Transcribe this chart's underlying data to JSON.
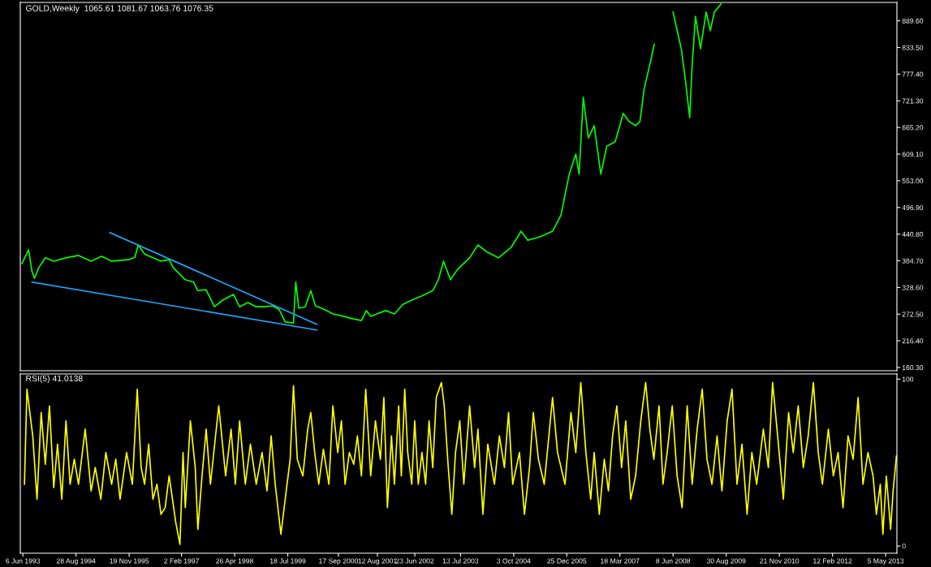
{
  "chart_data": [
    {
      "type": "line",
      "title": "GOLD,Weekly  1065.61 1081.67 1063.76 1076.35",
      "xlim": [
        "1993-05-15",
        "2013-08-08"
      ],
      "ylim": [
        153.5,
        928.3
      ],
      "tick_labels": "y",
      "yticks": [
        {
          "value": 160.3,
          "label": "160.30"
        },
        {
          "value": 216.4,
          "label": "216.40"
        },
        {
          "value": 272.5,
          "label": "272.50"
        },
        {
          "value": 328.6,
          "label": "328.60"
        },
        {
          "value": 384.7,
          "label": "384.70"
        },
        {
          "value": 440.8,
          "label": "440.80"
        },
        {
          "value": 496.9,
          "label": "496.90"
        },
        {
          "value": 553,
          "label": "553.00"
        },
        {
          "value": 609.1,
          "label": "609.10"
        },
        {
          "value": 665.2,
          "label": "665.20"
        },
        {
          "value": 721.3,
          "label": "721.30"
        },
        {
          "value": 777.4,
          "label": "777.40"
        },
        {
          "value": 833.5,
          "label": "833.50"
        },
        {
          "value": 889.6,
          "label": "889.60"
        }
      ],
      "series": [
        {
          "color": "#00ff00",
          "x": [
            "1993-05-29",
            "1993-07-24",
            "1993-08-22",
            "1993-09-12",
            "1993-10-17",
            "1993-12-12",
            "1994-02-21",
            "1994-06-04",
            "1994-09-18",
            "1995-01-02",
            "1995-04-01",
            "1995-06-24",
            "1995-11-12",
            "1996-01-06",
            "1996-02-03",
            "1996-03-28",
            "1996-06-06",
            "1996-08-13",
            "1996-10-21",
            "1996-11-25",
            "1997-02-02",
            "1997-03-06",
            "1997-05-15",
            "1997-06-19",
            "1997-08-28",
            "1997-11-07",
            "1998-01-16",
            "1998-04-16",
            "1998-06-07",
            "1998-08-16",
            "1998-10-25",
            "1999-01-04",
            "1999-03-13",
            "1999-05-07",
            "1999-06-26",
            "1999-09-04",
            "1999-09-23",
            "1999-10-19",
            "1999-12-12",
            "2000-01-28",
            "2000-03-07",
            "2000-05-26",
            "2000-08-01",
            "2000-10-27",
            "2001-01-13",
            "2001-03-30",
            "2001-05-10",
            "2001-06-16",
            "2001-08-07",
            "2001-10-20",
            "2002-01-02",
            "2002-03-15",
            "2002-05-28",
            "2002-08-22",
            "2002-11-21",
            "2003-01-08",
            "2003-02-20",
            "2003-04-19",
            "2003-06-19",
            "2003-09-28",
            "2003-12-07",
            "2004-02-16",
            "2004-05-28",
            "2004-09-12",
            "2004-12-05",
            "2005-01-30",
            "2005-05-13",
            "2005-08-27",
            "2005-11-06",
            "2006-01-15",
            "2006-03-11",
            "2006-04-08",
            "2006-05-13",
            "2006-06-25",
            "2006-08-13",
            "2006-10-08",
            "2006-11-27",
            "2007-02-06",
            "2007-04-15",
            "2007-06-03",
            "2007-07-29",
            "2007-09-03",
            "2007-10-08",
            "2007-12-03",
            "2008-01-01",
            "2008-02-26",
            "2008-06-08",
            "2008-08-16",
            "2008-09-21",
            "2008-10-26",
            "2008-11-16",
            "2008-12-14",
            "2009-01-25",
            "2009-03-14",
            "2009-04-18",
            "2009-05-22",
            "2009-07-18"
          ],
          "values": [
            379,
            408,
            362,
            348,
            370,
            391,
            384,
            391,
            396,
            384,
            394,
            384,
            387,
            392,
            418,
            399,
            391,
            384,
            387,
            370,
            353,
            345,
            340,
            322,
            324,
            288,
            302,
            314,
            288,
            297,
            288,
            288,
            290,
            282,
            256,
            254,
            340,
            285,
            288,
            322,
            290,
            282,
            273,
            268,
            263,
            259,
            280,
            268,
            273,
            280,
            273,
            293,
            302,
            311,
            322,
            345,
            384,
            345,
            367,
            391,
            418,
            404,
            391,
            413,
            447,
            428,
            435,
            447,
            481,
            567,
            609,
            567,
            729,
            643,
            669,
            567,
            626,
            635,
            695,
            678,
            669,
            678,
            746,
            806,
            840,
            null,
            908,
            831,
            763,
            686,
            797,
            899,
            831,
            908,
            869,
            908,
            925
          ]
        },
        {
          "type": "line",
          "color": "#1ea8ff",
          "x": [
            "1995-06-10",
            "2000-03-20"
          ],
          "values": [
            444,
            251
          ]
        },
        {
          "type": "line",
          "color": "#1ea8ff",
          "x": [
            "1993-08-22",
            "2000-03-20"
          ],
          "values": [
            340,
            239
          ]
        }
      ]
    },
    {
      "type": "line",
      "title": "RSI(5) 41.0138",
      "xlim": [
        "1993-05-15",
        "2013-08-08"
      ],
      "ylim": [
        -4.3,
        103.1
      ],
      "xticks": [
        {
          "value": "1993-06-06",
          "label": "6 Jun 1993"
        },
        {
          "value": "1994-08-28",
          "label": "28 Aug 1994"
        },
        {
          "value": "1995-11-19",
          "label": "19 Nov 1995"
        },
        {
          "value": "1997-02-02",
          "label": "2 Feb 1997"
        },
        {
          "value": "1998-04-26",
          "label": "26 Apr 1998"
        },
        {
          "value": "1999-07-18",
          "label": "18 Jul 1999"
        },
        {
          "value": "2000-09-17",
          "label": "17 Sep 2000"
        },
        {
          "value": "2001-08-12",
          "label": "12 Aug 2001"
        },
        {
          "value": "2002-06-23",
          "label": "23 Jun 2002"
        },
        {
          "value": "2003-07-13",
          "label": "13 Jul 2003"
        },
        {
          "value": "2004-10-03",
          "label": "3 Oct 2004"
        },
        {
          "value": "2005-12-25",
          "label": "25 Dec 2005"
        },
        {
          "value": "2007-03-18",
          "label": "18 Mar 2007"
        },
        {
          "value": "2008-06-08",
          "label": "8 Jun 2008"
        },
        {
          "value": "2009-08-30",
          "label": "30 Aug 2009"
        },
        {
          "value": "2010-11-21",
          "label": "21 Nov 2010"
        },
        {
          "value": "2012-02-12",
          "label": "12 Feb 2012"
        },
        {
          "value": "2013-05-05",
          "label": "5 May 2013"
        }
      ],
      "yticks": [
        0,
        100
      ],
      "series": [
        {
          "color": "#ffff00",
          "x": [
            "1993-06-19",
            "1993-07-10",
            "1993-08-28",
            "1993-10-03",
            "1993-11-07",
            "1993-12-12",
            "1994-01-16",
            "1994-02-21",
            "1994-03-25",
            "1994-04-30",
            "1994-06-04",
            "1994-07-09",
            "1994-08-13",
            "1994-09-18",
            "1994-11-13",
            "1995-01-02",
            "1995-02-06",
            "1995-03-25",
            "1995-05-06",
            "1995-06-24",
            "1995-07-29",
            "1995-09-03",
            "1995-10-28",
            "1995-12-16",
            "1996-01-26",
            "1996-02-28",
            "1996-03-28",
            "1996-05-01",
            "1996-06-06",
            "1996-07-10",
            "1996-08-13",
            "1996-09-17",
            "1996-10-21",
            "1996-12-16",
            "1997-01-20",
            "1997-02-15",
            "1997-03-06",
            "1997-04-18",
            "1997-05-29",
            "1997-06-20",
            "1997-07-25",
            "1997-08-29",
            "1997-10-04",
            "1997-12-13",
            "1998-02-09",
            "1998-03-27",
            "1998-05-02",
            "1998-06-07",
            "1998-07-25",
            "1998-09-06",
            "1998-10-25",
            "1998-12-13",
            "1999-01-24",
            "1999-02-28",
            "1999-04-03",
            "1999-05-21",
            "1999-06-26",
            "1999-08-07",
            "1999-09-04",
            "1999-10-06",
            "1999-11-22",
            "2000-01-02",
            "2000-01-28",
            "2000-03-01",
            "2000-04-04",
            "2000-05-13",
            "2000-06-29",
            "2000-08-01",
            "2000-09-11",
            "2000-10-12",
            "2000-11-12",
            "2000-12-18",
            "2001-01-24",
            "2001-02-24",
            "2001-03-30",
            "2001-05-05",
            "2001-06-16",
            "2001-07-26",
            "2001-09-06",
            "2001-10-05",
            "2001-11-04",
            "2001-12-08",
            "2002-01-02",
            "2002-02-07",
            "2002-03-01",
            "2002-03-30",
            "2002-04-24",
            "2002-05-28",
            "2002-06-22",
            "2002-07-22",
            "2002-08-22",
            "2002-09-22",
            "2002-10-21",
            "2002-11-21",
            "2002-12-21",
            "2003-02-02",
            "2003-02-26",
            "2003-04-01",
            "2003-05-01",
            "2003-06-01",
            "2003-07-07",
            "2003-08-10",
            "2003-09-28",
            "2003-11-09",
            "2003-12-07",
            "2004-01-18",
            "2004-02-28",
            "2004-04-24",
            "2004-06-05",
            "2004-07-17",
            "2004-08-21",
            "2004-09-25",
            "2004-11-21",
            "2005-01-02",
            "2005-02-14",
            "2005-03-18",
            "2005-04-30",
            "2005-06-18",
            "2005-08-27",
            "2005-10-08",
            "2005-12-10",
            "2006-01-29",
            "2006-03-11",
            "2006-04-22",
            "2006-06-04",
            "2006-07-15",
            "2006-08-13",
            "2006-09-25",
            "2006-11-06",
            "2006-12-11",
            "2007-01-15",
            "2007-02-20",
            "2007-04-01",
            "2007-05-06",
            "2007-06-17",
            "2007-07-28",
            "2007-09-10",
            "2007-10-21",
            "2007-11-25",
            "2007-12-29",
            "2008-02-11",
            "2008-03-15",
            "2008-04-19",
            "2008-06-01",
            "2008-07-12",
            "2008-08-23",
            "2008-10-05",
            "2008-11-16",
            "2008-12-28",
            "2009-02-09",
            "2009-03-21",
            "2009-05-02",
            "2009-06-14",
            "2009-07-25",
            "2009-09-07",
            "2009-10-18",
            "2009-11-29",
            "2010-01-10",
            "2010-02-22",
            "2010-04-03",
            "2010-05-14",
            "2010-07-09",
            "2010-08-20",
            "2010-09-25",
            "2010-11-13",
            "2010-12-25",
            "2011-02-07",
            "2011-03-18",
            "2011-04-29",
            "2011-06-11",
            "2011-07-22",
            "2011-09-04",
            "2011-10-15",
            "2011-11-19",
            "2012-01-08",
            "2012-02-19",
            "2012-03-30",
            "2012-05-11",
            "2012-06-22",
            "2012-08-04",
            "2012-09-15",
            "2012-10-26",
            "2012-12-07",
            "2013-01-19",
            "2013-02-16",
            "2013-03-21",
            "2013-04-12",
            "2013-05-11",
            "2013-06-16",
            "2013-07-07",
            "2013-08-04"
          ],
          "values": [
            37,
            94,
            66,
            28,
            80,
            49,
            84,
            35,
            61,
            28,
            75,
            37,
            52,
            37,
            70,
            33,
            47,
            28,
            56,
            37,
            52,
            28,
            56,
            37,
            94,
            47,
            37,
            61,
            28,
            37,
            19,
            23,
            42,
            14,
            1,
            56,
            23,
            75,
            47,
            10,
            42,
            70,
            37,
            84,
            42,
            70,
            37,
            75,
            37,
            61,
            37,
            56,
            33,
            66,
            37,
            7,
            28,
            52,
            96,
            52,
            42,
            70,
            80,
            56,
            37,
            58,
            37,
            84,
            56,
            75,
            37,
            56,
            49,
            66,
            42,
            94,
            42,
            75,
            52,
            89,
            23,
            66,
            37,
            84,
            42,
            94,
            56,
            37,
            75,
            37,
            56,
            37,
            75,
            47,
            89,
            98,
            84,
            47,
            19,
            56,
            75,
            37,
            84,
            47,
            70,
            19,
            61,
            37,
            66,
            47,
            80,
            37,
            56,
            19,
            47,
            80,
            52,
            37,
            89,
            56,
            37,
            80,
            56,
            98,
            56,
            28,
            56,
            19,
            52,
            33,
            66,
            84,
            47,
            75,
            28,
            42,
            75,
            98,
            70,
            52,
            84,
            37,
            56,
            84,
            42,
            23,
            84,
            37,
            70,
            94,
            52,
            37,
            66,
            33,
            75,
            94,
            37,
            61,
            19,
            56,
            37,
            70,
            47,
            98,
            61,
            28,
            80,
            56,
            84,
            47,
            66,
            98,
            56,
            37,
            70,
            42,
            56,
            23,
            66,
            52,
            89,
            37,
            56,
            42,
            19,
            37,
            7,
            42,
            10,
            33,
            54
          ]
        }
      ]
    }
  ]
}
